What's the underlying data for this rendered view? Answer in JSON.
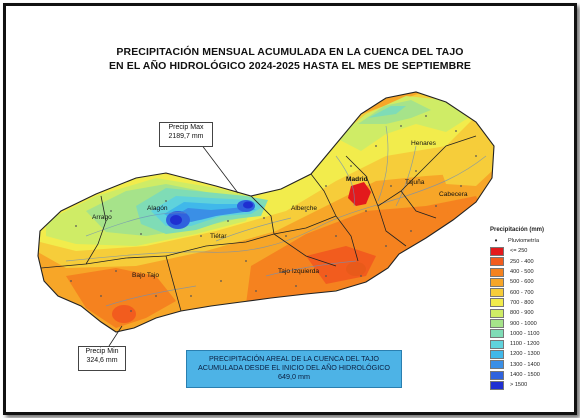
{
  "title": {
    "line1": "PRECIPITACIÓN MENSUAL ACUMULADA EN LA CUENCA DEL TAJO",
    "line2": "EN EL AÑO HIDROLÓGICO 2024-2025 HASTA EL MES DE SEPTIEMBRE"
  },
  "callouts": {
    "max": {
      "label": "Precip Max",
      "value": "2189,7 mm"
    },
    "min": {
      "label": "Precip Min",
      "value": "324,6 mm"
    }
  },
  "areal": {
    "line1": "PRECIPITACIÓN AREAL DE LA CUENCA DEL TAJO",
    "line2": "ACUMULADA DESDE EL INICIO DEL AÑO HIDROLÓGICO",
    "value": "649,0 mm"
  },
  "regions": {
    "henares": "Henares",
    "madrid": "Madrid",
    "tajuna": "Tajuña",
    "cabecera": "Cabecera",
    "arrago": "Arrago",
    "alagon": "Alagón",
    "alberche": "Alberche",
    "tietar": "Tiétar",
    "bajo_tajo": "Bajo Tajo",
    "tajo_izquierda": "Tajo Izquierda"
  },
  "legend": {
    "title": "Precipitación (mm)",
    "point_label": "Pluviometría",
    "items": [
      {
        "label": "<= 250",
        "color": "#e31a1c"
      },
      {
        "label": "250 - 400",
        "color": "#f25c1e"
      },
      {
        "label": "400 - 500",
        "color": "#f5821f"
      },
      {
        "label": "500 - 600",
        "color": "#f7a628"
      },
      {
        "label": "600 - 700",
        "color": "#f6cd3a"
      },
      {
        "label": "700 - 800",
        "color": "#f2ec4c"
      },
      {
        "label": "800 - 900",
        "color": "#cfec66"
      },
      {
        "label": "900 - 1000",
        "color": "#a6e38a"
      },
      {
        "label": "1000 - 1100",
        "color": "#7fdcb6"
      },
      {
        "label": "1100 - 1200",
        "color": "#5fd2dc"
      },
      {
        "label": "1200 - 1300",
        "color": "#40b8ea"
      },
      {
        "label": "1300 - 1400",
        "color": "#3a8fe6"
      },
      {
        "label": "1400 - 1500",
        "color": "#2f62de"
      },
      {
        "label": "> 1500",
        "color": "#1f2fd1"
      }
    ]
  }
}
